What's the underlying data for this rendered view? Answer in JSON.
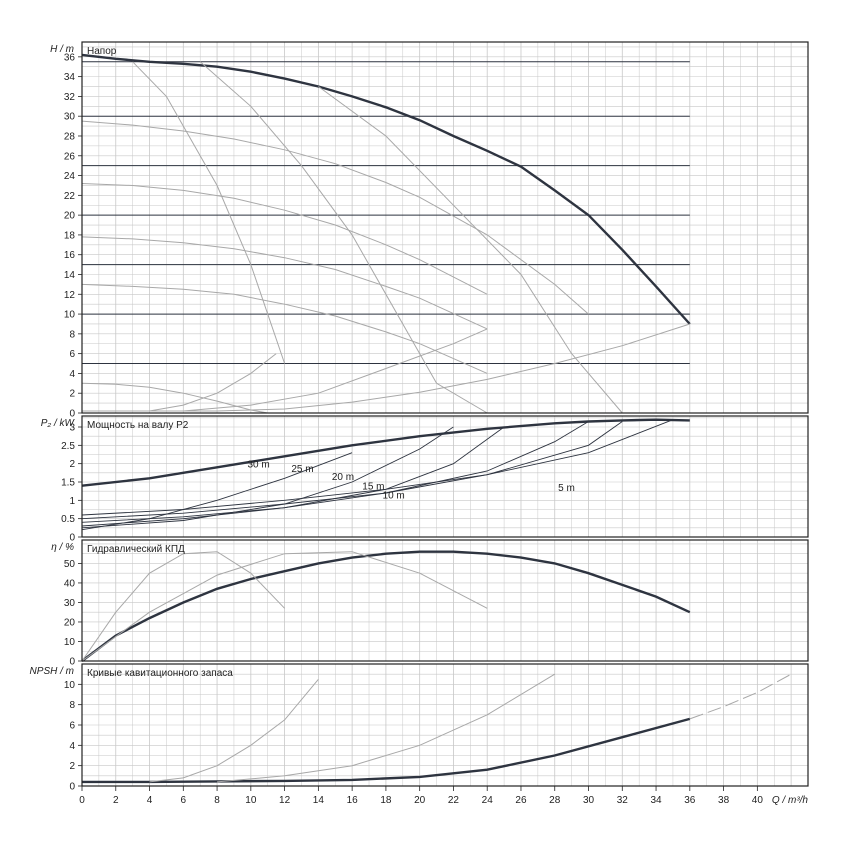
{
  "x_axis": {
    "label": "Q / m³/h",
    "ticks": [
      "0",
      "2",
      "4",
      "6",
      "8",
      "10",
      "12",
      "14",
      "16",
      "18",
      "20",
      "22",
      "24",
      "26",
      "28",
      "30",
      "32",
      "34",
      "36",
      "38",
      "40"
    ],
    "range": [
      0,
      43
    ]
  },
  "colors": {
    "main_curve": "#2e3440",
    "aux_curve": "#a8a8a8",
    "setpoint_line": "#2e3440",
    "grid": "#c8c8c8",
    "frame": "#222222"
  },
  "chart_data": [
    {
      "type": "line",
      "id": "head",
      "title": "Напор",
      "ylabel": "H / m",
      "ylim": [
        0,
        37.5
      ],
      "yticks": [
        "0",
        "2",
        "4",
        "6",
        "8",
        "10",
        "12",
        "14",
        "16",
        "18",
        "20",
        "22",
        "24",
        "26",
        "28",
        "30",
        "32",
        "34",
        "36"
      ],
      "grid": true,
      "setpoint_lines": [
        5,
        10,
        15,
        20,
        25,
        30,
        35.5
      ],
      "series": [
        {
          "role": "max-speed",
          "x": [
            0,
            2,
            4,
            6,
            8,
            10,
            12,
            14,
            16,
            18,
            20,
            22,
            24,
            26,
            28,
            30,
            32,
            34,
            36
          ],
          "y": [
            36.2,
            35.8,
            35.5,
            35.3,
            35,
            34.5,
            33.8,
            33,
            32,
            30.9,
            29.6,
            28,
            26.5,
            24.9,
            22.5,
            20,
            16.5,
            12.8,
            9
          ]
        },
        {
          "role": "min-curve",
          "x": [
            0,
            4,
            8,
            12,
            16,
            20,
            24,
            28,
            32,
            36
          ],
          "y": [
            0.2,
            0.2,
            0.2,
            0.4,
            1.1,
            2.1,
            3.4,
            5,
            6.8,
            9
          ]
        },
        {
          "role": "iso-speed",
          "x": [
            0,
            3,
            6,
            9,
            12,
            15,
            18,
            20,
            24,
            28,
            30
          ],
          "y": [
            29.5,
            29.1,
            28.5,
            27.7,
            26.6,
            25.2,
            23.3,
            21.8,
            18,
            13,
            10
          ]
        },
        {
          "role": "iso-speed",
          "x": [
            0,
            3,
            6,
            9,
            12,
            15,
            18,
            20,
            24
          ],
          "y": [
            23.2,
            23,
            22.5,
            21.7,
            20.5,
            19,
            17,
            15.5,
            12
          ]
        },
        {
          "role": "iso-speed",
          "x": [
            0,
            3,
            6,
            9,
            12,
            15,
            18,
            20,
            24
          ],
          "y": [
            17.8,
            17.6,
            17.2,
            16.6,
            15.7,
            14.5,
            12.8,
            11.6,
            8.5
          ]
        },
        {
          "role": "iso-speed",
          "x": [
            0,
            3,
            6,
            9,
            12,
            15,
            18,
            20,
            24
          ],
          "y": [
            13,
            12.8,
            12.5,
            12,
            11,
            9.8,
            8.2,
            7,
            4
          ]
        },
        {
          "role": "iso-speed",
          "x": [
            0,
            2,
            4,
            6,
            8,
            10,
            11
          ],
          "y": [
            3,
            2.9,
            2.6,
            2,
            1.2,
            0.3,
            0
          ]
        },
        {
          "role": "efficiency-iso",
          "x": [
            3,
            5,
            8,
            10,
            12
          ],
          "y": [
            35.5,
            32,
            23,
            15,
            5
          ]
        },
        {
          "role": "efficiency-iso",
          "x": [
            7,
            10,
            13,
            16,
            19,
            21,
            24
          ],
          "y": [
            35.5,
            31,
            25,
            18,
            9,
            3,
            0
          ]
        },
        {
          "role": "efficiency-iso",
          "x": [
            14,
            18,
            22,
            26,
            29,
            32
          ],
          "y": [
            33,
            28,
            21,
            14,
            6,
            0
          ]
        },
        {
          "role": "system",
          "x": [
            4,
            6,
            8,
            10,
            11.5
          ],
          "y": [
            0.2,
            0.8,
            2,
            4,
            6
          ]
        },
        {
          "role": "system",
          "x": [
            6,
            10,
            14,
            18,
            22,
            24
          ],
          "y": [
            0.2,
            0.8,
            2,
            4.5,
            7,
            8.5
          ]
        }
      ]
    },
    {
      "type": "line",
      "id": "power",
      "title": "Мощность на валу P2",
      "ylabel": "P₂ / kW",
      "ylim": [
        0,
        3.3
      ],
      "yticks": [
        "0",
        "0.5",
        "1",
        "1.5",
        "2",
        "2.5",
        "3"
      ],
      "grid": true,
      "annotations": [
        "30 m",
        "25 m",
        "20 m",
        "15 m",
        "10 m",
        "5 m"
      ],
      "series": [
        {
          "role": "max-speed",
          "x": [
            0,
            4,
            8,
            12,
            16,
            20,
            24,
            28,
            30,
            32,
            34,
            36
          ],
          "y": [
            1.4,
            1.6,
            1.9,
            2.2,
            2.5,
            2.75,
            2.95,
            3.1,
            3.15,
            3.18,
            3.2,
            3.18
          ]
        },
        {
          "role": "setpoint",
          "x": [
            0,
            6,
            12,
            18,
            24,
            30,
            35
          ],
          "y": [
            0.6,
            0.75,
            1,
            1.3,
            1.7,
            2.3,
            3.2
          ]
        },
        {
          "role": "setpoint",
          "x": [
            0,
            6,
            12,
            18,
            24,
            30,
            32
          ],
          "y": [
            0.5,
            0.65,
            0.9,
            1.2,
            1.7,
            2.5,
            3.15
          ]
        },
        {
          "role": "setpoint",
          "x": [
            0,
            6,
            12,
            18,
            24,
            28,
            30
          ],
          "y": [
            0.4,
            0.55,
            0.8,
            1.2,
            1.8,
            2.6,
            3.15
          ]
        },
        {
          "role": "setpoint",
          "x": [
            0,
            6,
            12,
            18,
            22,
            25
          ],
          "y": [
            0.3,
            0.5,
            0.8,
            1.3,
            2,
            3
          ]
        },
        {
          "role": "setpoint",
          "x": [
            0,
            6,
            12,
            16,
            20,
            22
          ],
          "y": [
            0.25,
            0.45,
            0.9,
            1.5,
            2.4,
            3
          ]
        },
        {
          "role": "setpoint",
          "x": [
            0,
            4,
            8,
            12,
            16
          ],
          "y": [
            0.2,
            0.5,
            1,
            1.6,
            2.3
          ]
        }
      ]
    },
    {
      "type": "line",
      "id": "efficiency",
      "title": "Гидравлический КПД",
      "ylabel": "η / %",
      "ylim": [
        0,
        62
      ],
      "yticks": [
        "0",
        "10",
        "20",
        "30",
        "40",
        "50"
      ],
      "grid": true,
      "series": [
        {
          "role": "max-speed",
          "x": [
            0,
            2,
            4,
            6,
            8,
            10,
            12,
            14,
            16,
            18,
            20,
            22,
            24,
            26,
            28,
            30,
            32,
            34,
            36
          ],
          "y": [
            0,
            13,
            22,
            30,
            37,
            42,
            46,
            50,
            53,
            55,
            56,
            56,
            55,
            53,
            50,
            45,
            39,
            33,
            25
          ]
        },
        {
          "role": "partial",
          "x": [
            0,
            2,
            4,
            6,
            8,
            10,
            12
          ],
          "y": [
            0,
            25,
            45,
            55,
            56,
            45,
            27
          ]
        },
        {
          "role": "partial",
          "x": [
            0,
            4,
            8,
            12,
            16,
            20,
            24
          ],
          "y": [
            0,
            25,
            44,
            55,
            56,
            45,
            27
          ]
        }
      ]
    },
    {
      "type": "line",
      "id": "npsh",
      "title": "Кривые кавитационного запаса",
      "ylabel": "NPSH / m",
      "ylim": [
        0,
        12
      ],
      "yticks": [
        "0",
        "2",
        "4",
        "6",
        "8",
        "10"
      ],
      "grid": true,
      "series": [
        {
          "role": "max-speed",
          "x": [
            0,
            4,
            8,
            12,
            16,
            20,
            24,
            28,
            32,
            36
          ],
          "y": [
            0.4,
            0.4,
            0.45,
            0.5,
            0.6,
            0.9,
            1.6,
            3,
            4.8,
            6.6
          ]
        },
        {
          "role": "extension",
          "x": [
            36,
            38,
            40,
            42
          ],
          "y": [
            6.6,
            7.8,
            9.2,
            11
          ]
        },
        {
          "role": "partial",
          "x": [
            4,
            6,
            8,
            10,
            12,
            14
          ],
          "y": [
            0.4,
            0.8,
            2,
            4,
            6.5,
            10.5
          ]
        },
        {
          "role": "partial",
          "x": [
            8,
            12,
            16,
            20,
            24,
            28
          ],
          "y": [
            0.4,
            1,
            2,
            4,
            7,
            11
          ]
        }
      ]
    }
  ]
}
